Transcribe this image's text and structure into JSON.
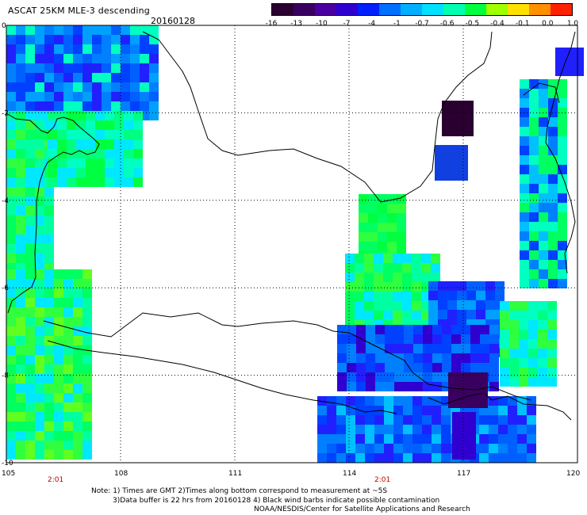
{
  "header": {
    "title": "ASCAT 25KM MLE-3 descending",
    "date": "20160128"
  },
  "colorbar": {
    "ticks": [
      "-16",
      "-13",
      "-10",
      "-7",
      "-4",
      "-1",
      "-0.7",
      "-0.6",
      "-0.5",
      "-0.4",
      "-0.1",
      "0.0",
      "1.0"
    ],
    "colors": [
      "#2a0030",
      "#3a0060",
      "#4a00a0",
      "#3000d0",
      "#0020ff",
      "#0070ff",
      "#00b0ff",
      "#00e0ff",
      "#00ffb0",
      "#00ff40",
      "#a0ff00",
      "#ffe000",
      "#ff9000",
      "#ff2000"
    ]
  },
  "axes": {
    "lat_labels": [
      "0",
      "-2",
      "-4",
      "-6",
      "-8",
      "-10"
    ],
    "lon_labels": [
      "105",
      "108",
      "111",
      "114",
      "117",
      "120"
    ],
    "time_labels": [
      "2:01",
      "2:01"
    ]
  },
  "footer": {
    "line1": "Note: 1) Times are GMT 2)Times along bottom correspond to measurement at ~5S",
    "line2": "3)Data buffer is 22 hrs from 20160128 4) Black wind barbs indicate possible contamination",
    "line3": "NOAA/NESDIS/Center for Satellite Applications and Research"
  },
  "map": {
    "region": "Java Sea / Indonesia",
    "palette": {
      "coast": "#000000",
      "grid": "#000000"
    }
  }
}
